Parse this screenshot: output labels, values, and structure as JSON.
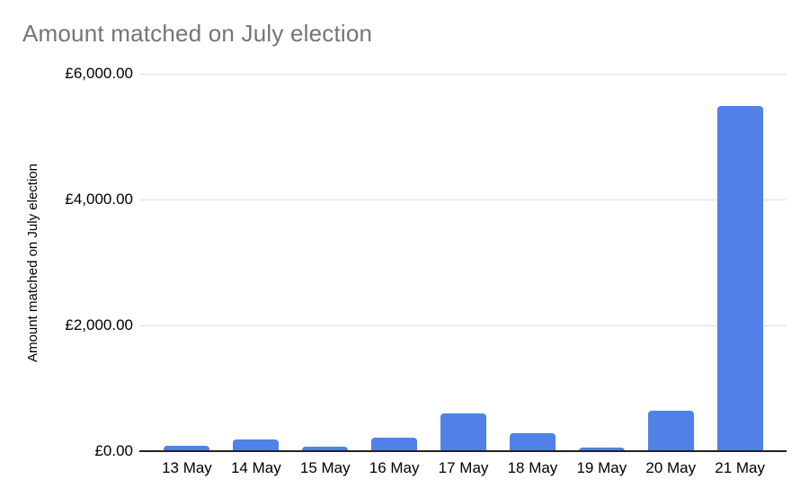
{
  "chart_data": {
    "type": "bar",
    "title": "Amount matched on July election",
    "ylabel": "Amount matched on July election",
    "xlabel": "",
    "categories": [
      "13 May",
      "14 May",
      "15 May",
      "16 May",
      "17 May",
      "18 May",
      "19 May",
      "20 May",
      "21 May"
    ],
    "values": [
      90,
      190,
      65,
      220,
      600,
      280,
      55,
      650,
      5480
    ],
    "ylim": [
      0,
      6000
    ],
    "yticks": [
      {
        "value": 0,
        "label": "£0.00"
      },
      {
        "value": 2000,
        "label": "£2,000.00"
      },
      {
        "value": 4000,
        "label": "£4,000.00"
      },
      {
        "value": 6000,
        "label": "£6,000.00"
      }
    ],
    "grid": true,
    "legend": false
  },
  "style": {
    "bar_color": "#4f81e8",
    "title_color": "#757575",
    "axis_text_color": "#000000",
    "gridline_color": "#e0e0e0",
    "axis_line_color": "#222222",
    "background": "#ffffff"
  }
}
